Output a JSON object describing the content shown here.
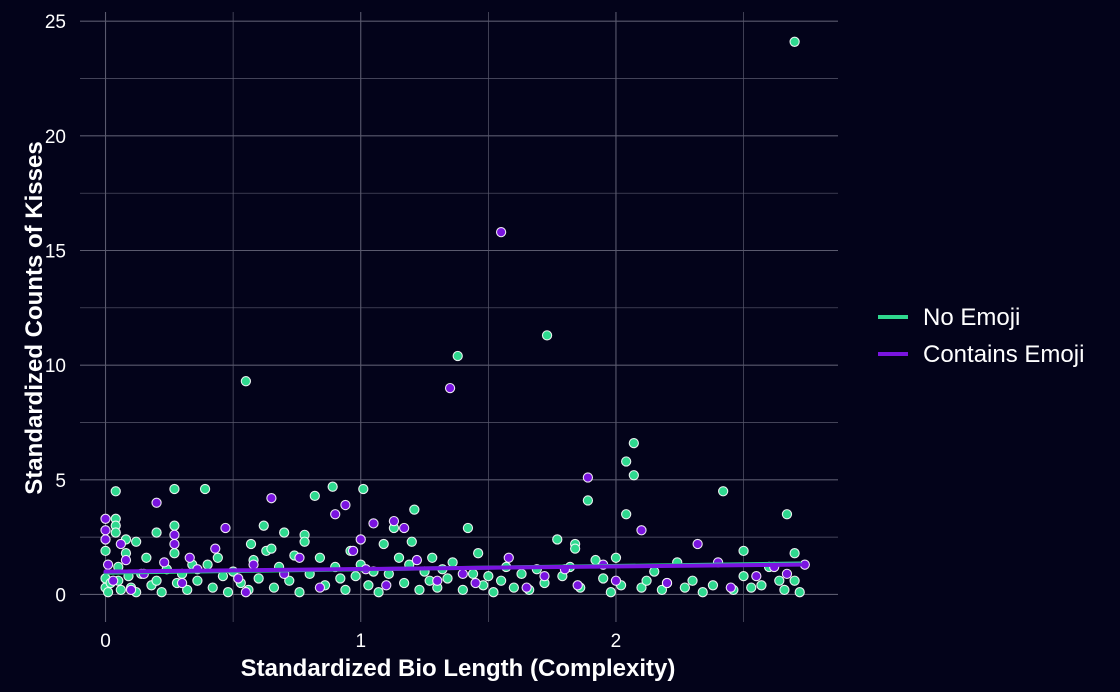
{
  "chart_data": {
    "type": "scatter",
    "xlabel": "Standardized Bio Length (Complexity)",
    "ylabel": "Standardized Counts of Kisses",
    "xlim": [
      -0.1,
      2.87
    ],
    "ylim": [
      -1.2,
      25.4
    ],
    "x_ticks": [
      0,
      1,
      2
    ],
    "y_ticks": [
      0,
      5,
      10,
      15,
      20,
      25
    ],
    "grid": true,
    "legend_position": "right",
    "colors": {
      "background": "#03031a",
      "grid": "#5a5a6e",
      "no_emoji": "#2fd98f",
      "contains_emoji": "#7a14e0",
      "marker_edge": "#ffffff"
    },
    "legend": [
      {
        "label": "No Emoji",
        "color": "#2fd98f"
      },
      {
        "label": "Contains Emoji",
        "color": "#7a14e0"
      }
    ],
    "series": [
      {
        "name": "No Emoji",
        "color": "#2fd98f",
        "trend": [
          [
            0,
            0.95
          ],
          [
            2.72,
            1.35
          ]
        ],
        "points": [
          [
            0.0,
            0.3
          ],
          [
            0.0,
            0.7
          ],
          [
            0.0,
            1.9
          ],
          [
            0.01,
            0.1
          ],
          [
            0.02,
            0.5
          ],
          [
            0.04,
            4.5
          ],
          [
            0.04,
            3.3
          ],
          [
            0.04,
            3.0
          ],
          [
            0.04,
            2.7
          ],
          [
            0.05,
            1.2
          ],
          [
            0.05,
            0.6
          ],
          [
            0.06,
            0.2
          ],
          [
            0.08,
            2.4
          ],
          [
            0.08,
            1.8
          ],
          [
            0.09,
            0.8
          ],
          [
            0.1,
            0.3
          ],
          [
            0.12,
            2.3
          ],
          [
            0.12,
            0.1
          ],
          [
            0.14,
            0.9
          ],
          [
            0.16,
            1.6
          ],
          [
            0.18,
            0.4
          ],
          [
            0.2,
            2.7
          ],
          [
            0.2,
            0.6
          ],
          [
            0.22,
            0.1
          ],
          [
            0.24,
            1.1
          ],
          [
            0.27,
            4.6
          ],
          [
            0.27,
            3.0
          ],
          [
            0.27,
            1.8
          ],
          [
            0.28,
            0.5
          ],
          [
            0.3,
            0.9
          ],
          [
            0.32,
            0.2
          ],
          [
            0.34,
            1.3
          ],
          [
            0.36,
            0.6
          ],
          [
            0.39,
            4.6
          ],
          [
            0.4,
            1.3
          ],
          [
            0.42,
            0.3
          ],
          [
            0.44,
            1.6
          ],
          [
            0.46,
            0.8
          ],
          [
            0.48,
            0.1
          ],
          [
            0.5,
            1.0
          ],
          [
            0.53,
            0.5
          ],
          [
            0.55,
            9.3
          ],
          [
            0.56,
            0.2
          ],
          [
            0.57,
            2.2
          ],
          [
            0.58,
            1.5
          ],
          [
            0.6,
            0.7
          ],
          [
            0.62,
            3.0
          ],
          [
            0.63,
            1.9
          ],
          [
            0.65,
            2.0
          ],
          [
            0.66,
            0.3
          ],
          [
            0.68,
            1.2
          ],
          [
            0.7,
            2.7
          ],
          [
            0.72,
            0.6
          ],
          [
            0.74,
            1.7
          ],
          [
            0.76,
            0.1
          ],
          [
            0.78,
            2.6
          ],
          [
            0.78,
            2.3
          ],
          [
            0.8,
            0.9
          ],
          [
            0.82,
            4.3
          ],
          [
            0.84,
            1.6
          ],
          [
            0.86,
            0.4
          ],
          [
            0.89,
            4.7
          ],
          [
            0.9,
            1.2
          ],
          [
            0.92,
            0.7
          ],
          [
            0.94,
            0.2
          ],
          [
            0.96,
            1.9
          ],
          [
            0.98,
            0.8
          ],
          [
            1.0,
            1.3
          ],
          [
            1.01,
            4.6
          ],
          [
            1.03,
            0.4
          ],
          [
            1.05,
            1.0
          ],
          [
            1.07,
            0.1
          ],
          [
            1.09,
            2.2
          ],
          [
            1.11,
            0.9
          ],
          [
            1.13,
            2.9
          ],
          [
            1.15,
            1.6
          ],
          [
            1.17,
            0.5
          ],
          [
            1.19,
            1.3
          ],
          [
            1.2,
            2.3
          ],
          [
            1.21,
            3.7
          ],
          [
            1.23,
            0.2
          ],
          [
            1.25,
            1.0
          ],
          [
            1.27,
            0.6
          ],
          [
            1.28,
            1.6
          ],
          [
            1.3,
            0.3
          ],
          [
            1.32,
            1.1
          ],
          [
            1.34,
            0.7
          ],
          [
            1.36,
            1.4
          ],
          [
            1.38,
            10.4
          ],
          [
            1.4,
            0.2
          ],
          [
            1.42,
            2.9
          ],
          [
            1.44,
            0.9
          ],
          [
            1.46,
            1.8
          ],
          [
            1.48,
            0.4
          ],
          [
            1.5,
            0.8
          ],
          [
            1.52,
            0.1
          ],
          [
            1.55,
            0.6
          ],
          [
            1.57,
            1.2
          ],
          [
            1.6,
            0.3
          ],
          [
            1.63,
            0.9
          ],
          [
            1.66,
            0.2
          ],
          [
            1.69,
            1.1
          ],
          [
            1.72,
            0.5
          ],
          [
            1.73,
            11.3
          ],
          [
            1.77,
            2.4
          ],
          [
            1.79,
            0.8
          ],
          [
            1.82,
            1.2
          ],
          [
            1.84,
            2.2
          ],
          [
            1.84,
            2.0
          ],
          [
            1.86,
            0.3
          ],
          [
            1.89,
            4.1
          ],
          [
            1.92,
            1.5
          ],
          [
            1.95,
            0.7
          ],
          [
            1.98,
            0.1
          ],
          [
            2.0,
            1.6
          ],
          [
            2.02,
            0.4
          ],
          [
            2.04,
            5.8
          ],
          [
            2.04,
            3.5
          ],
          [
            2.07,
            6.6
          ],
          [
            2.07,
            5.2
          ],
          [
            2.1,
            0.3
          ],
          [
            2.12,
            0.6
          ],
          [
            2.15,
            1.0
          ],
          [
            2.18,
            0.2
          ],
          [
            2.2,
            0.5
          ],
          [
            2.24,
            1.4
          ],
          [
            2.27,
            0.3
          ],
          [
            2.3,
            0.6
          ],
          [
            2.34,
            0.1
          ],
          [
            2.38,
            0.4
          ],
          [
            2.42,
            4.5
          ],
          [
            2.46,
            0.2
          ],
          [
            2.5,
            1.9
          ],
          [
            2.5,
            0.8
          ],
          [
            2.53,
            0.3
          ],
          [
            2.57,
            0.4
          ],
          [
            2.6,
            1.2
          ],
          [
            2.64,
            0.6
          ],
          [
            2.66,
            0.2
          ],
          [
            2.67,
            3.5
          ],
          [
            2.7,
            1.8
          ],
          [
            2.7,
            0.6
          ],
          [
            2.72,
            0.1
          ],
          [
            2.7,
            24.1
          ]
        ]
      },
      {
        "name": "Contains Emoji",
        "color": "#7a14e0",
        "trend": [
          [
            0,
            1.0
          ],
          [
            2.72,
            1.3
          ]
        ],
        "points": [
          [
            0.0,
            3.3
          ],
          [
            0.0,
            2.8
          ],
          [
            0.0,
            2.4
          ],
          [
            0.01,
            1.3
          ],
          [
            0.03,
            0.6
          ],
          [
            0.06,
            2.2
          ],
          [
            0.08,
            1.5
          ],
          [
            0.1,
            0.2
          ],
          [
            0.15,
            0.9
          ],
          [
            0.2,
            4.0
          ],
          [
            0.23,
            1.4
          ],
          [
            0.27,
            2.6
          ],
          [
            0.27,
            2.2
          ],
          [
            0.3,
            0.5
          ],
          [
            0.33,
            1.6
          ],
          [
            0.36,
            1.1
          ],
          [
            0.43,
            2.0
          ],
          [
            0.47,
            2.9
          ],
          [
            0.52,
            0.7
          ],
          [
            0.55,
            0.1
          ],
          [
            0.58,
            1.3
          ],
          [
            0.65,
            4.2
          ],
          [
            0.7,
            0.9
          ],
          [
            0.76,
            1.6
          ],
          [
            0.84,
            0.3
          ],
          [
            0.9,
            3.5
          ],
          [
            0.94,
            3.9
          ],
          [
            0.97,
            1.9
          ],
          [
            1.0,
            2.4
          ],
          [
            1.02,
            1.1
          ],
          [
            1.05,
            3.1
          ],
          [
            1.1,
            0.4
          ],
          [
            1.13,
            3.2
          ],
          [
            1.17,
            2.9
          ],
          [
            1.22,
            1.5
          ],
          [
            1.3,
            0.6
          ],
          [
            1.35,
            9.0
          ],
          [
            1.4,
            0.9
          ],
          [
            1.45,
            0.5
          ],
          [
            1.55,
            15.8
          ],
          [
            1.58,
            1.6
          ],
          [
            1.65,
            0.3
          ],
          [
            1.72,
            0.8
          ],
          [
            1.8,
            1.1
          ],
          [
            1.85,
            0.4
          ],
          [
            1.89,
            5.1
          ],
          [
            1.95,
            1.3
          ],
          [
            2.0,
            0.6
          ],
          [
            2.1,
            2.8
          ],
          [
            2.2,
            0.5
          ],
          [
            2.32,
            2.2
          ],
          [
            2.4,
            1.4
          ],
          [
            2.45,
            0.3
          ],
          [
            2.55,
            0.8
          ],
          [
            2.62,
            1.2
          ],
          [
            2.67,
            0.9
          ],
          [
            2.74,
            1.3
          ]
        ]
      }
    ]
  }
}
